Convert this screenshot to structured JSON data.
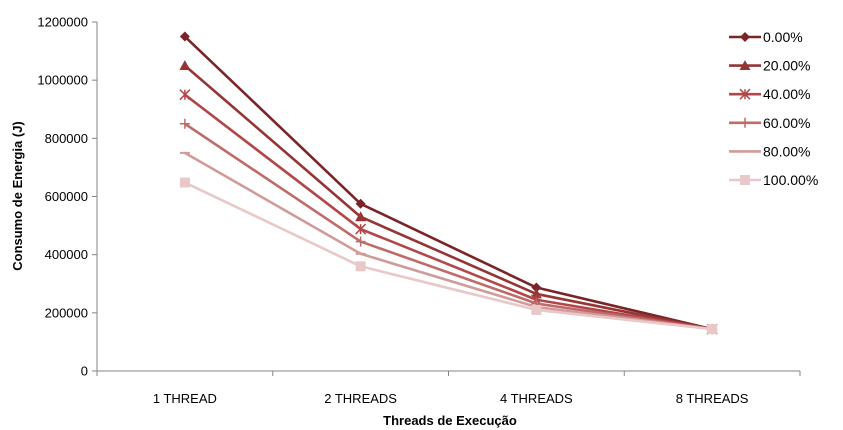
{
  "chart_data": {
    "type": "line",
    "title": "",
    "xlabel": "Threads de Execução",
    "ylabel": "Consumo de Energia (J)",
    "categories": [
      "1 THREAD",
      "2 THREADS",
      "4 THREADS",
      "8 THREADS"
    ],
    "ylim": [
      0,
      1200000
    ],
    "yticks": [
      0,
      200000,
      400000,
      600000,
      800000,
      1000000,
      1200000
    ],
    "ytick_labels": [
      "0",
      "200000",
      "400000",
      "600000",
      "800000",
      "1000000",
      "1200000"
    ],
    "grid": false,
    "legend_position": "top-right",
    "series": [
      {
        "name": "0.00%",
        "values": [
          1150000,
          575000,
          287000,
          144000
        ],
        "color": "#7b2427",
        "marker": "diamond"
      },
      {
        "name": "20.00%",
        "values": [
          1050000,
          530000,
          265000,
          144000
        ],
        "color": "#953535",
        "marker": "triangle"
      },
      {
        "name": "40.00%",
        "values": [
          950000,
          488000,
          245000,
          144000
        ],
        "color": "#b2474a",
        "marker": "star"
      },
      {
        "name": "60.00%",
        "values": [
          850000,
          445000,
          232000,
          144000
        ],
        "color": "#c06a6a",
        "marker": "plus"
      },
      {
        "name": "80.00%",
        "values": [
          750000,
          403000,
          220000,
          144000
        ],
        "color": "#d19b9a",
        "marker": "dash"
      },
      {
        "name": "100.00%",
        "values": [
          648000,
          360000,
          210000,
          144000
        ],
        "color": "#e8c8c8",
        "marker": "square"
      }
    ]
  }
}
